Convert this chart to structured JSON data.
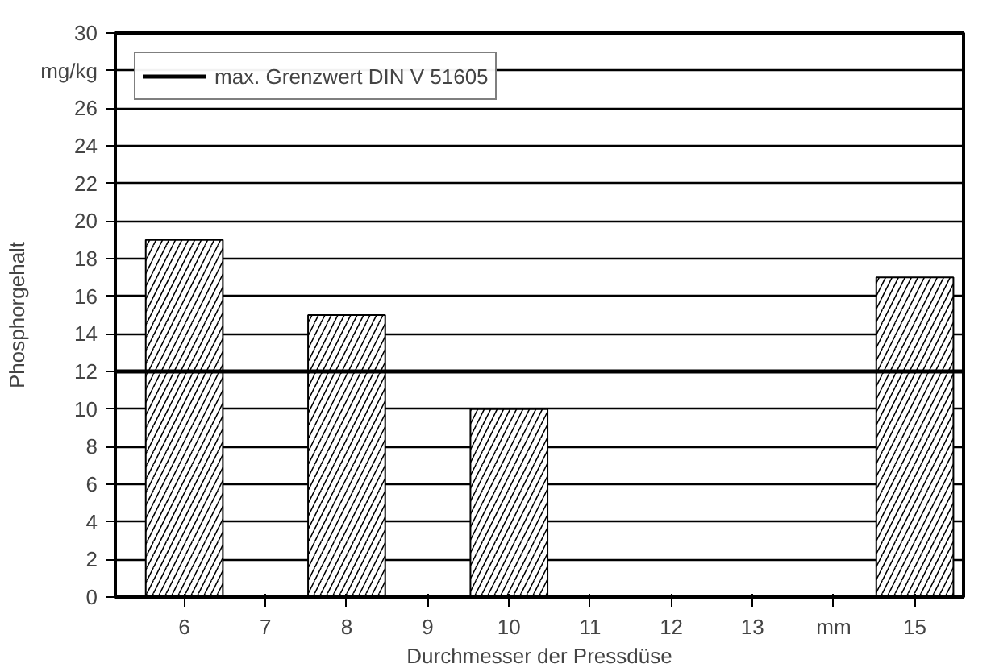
{
  "chart_data": {
    "type": "bar",
    "xlabel": "Durchmesser der Pressdüse",
    "ylabel": "Phosphorgehalt",
    "x": [
      6,
      8,
      10,
      15
    ],
    "values": [
      19,
      15,
      10,
      17
    ],
    "color": "#ffffff",
    "xlim": [
      5.15,
      15.6
    ],
    "xticks": [
      6,
      7,
      8,
      9,
      10,
      11,
      12,
      13,
      {
        "value": 14,
        "label": "mm"
      },
      15
    ],
    "ylim": [
      0,
      30
    ],
    "yticks": [
      0,
      2,
      4,
      6,
      8,
      10,
      12,
      14,
      16,
      18,
      20,
      22,
      24,
      26,
      {
        "value": 28,
        "label": "mg/kg"
      },
      30
    ],
    "ref_lines": [
      {
        "axis": "y",
        "value": 12,
        "label": "max. Grenzwert DIN V 51605",
        "color": "#000000"
      }
    ],
    "grid": "y",
    "legend": "top left"
  }
}
